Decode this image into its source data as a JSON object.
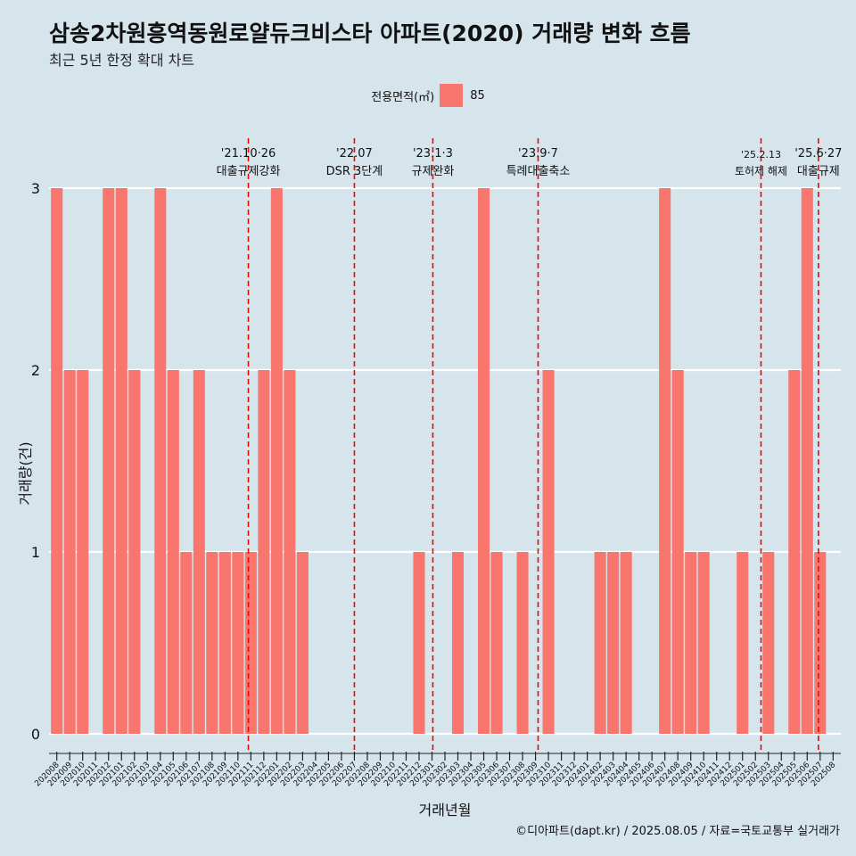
{
  "header": {
    "title": "삼송2차원흥역동원로얄듀크비스타 아파트(2020) 거래량 변화 흐름",
    "subtitle": "최근 5년 한정 확대 차트"
  },
  "legend": {
    "title": "전용면적(㎡)",
    "entries": [
      {
        "label": "85",
        "color": "#f8766d"
      }
    ]
  },
  "caption": "©디아파트(dapt.kr) / 2025.08.05 / 자료=국토교통부 실거래가",
  "colors": {
    "background": "#d6e4ec",
    "bar": "#f8766d",
    "gridline": "#ffffff",
    "event_line": "#ff0000"
  },
  "chart_data": {
    "type": "bar",
    "xlabel": "거래년월",
    "ylabel": "거래량(건)",
    "ylim": [
      0,
      3
    ],
    "yticks": [
      0,
      1,
      2,
      3
    ],
    "categories": [
      "202008",
      "202009",
      "202010",
      "202011",
      "202012",
      "202101",
      "202102",
      "202103",
      "202104",
      "202105",
      "202106",
      "202107",
      "202108",
      "202109",
      "202110",
      "202111",
      "202112",
      "202201",
      "202202",
      "202203",
      "202204",
      "202205",
      "202206",
      "202207",
      "202208",
      "202209",
      "202210",
      "202211",
      "202212",
      "202301",
      "202302",
      "202303",
      "202304",
      "202305",
      "202306",
      "202307",
      "202308",
      "202309",
      "202310",
      "202311",
      "202312",
      "202401",
      "202402",
      "202403",
      "202404",
      "202405",
      "202406",
      "202407",
      "202408",
      "202409",
      "202410",
      "202411",
      "202412",
      "202501",
      "202502",
      "202503",
      "202504",
      "202505",
      "202506",
      "202507",
      "202508"
    ],
    "series": [
      {
        "name": "85",
        "values": [
          3,
          2,
          2,
          0,
          3,
          3,
          2,
          0,
          3,
          2,
          1,
          2,
          1,
          1,
          1,
          1,
          2,
          3,
          2,
          1,
          0,
          0,
          0,
          0,
          0,
          0,
          0,
          0,
          1,
          0,
          0,
          1,
          0,
          3,
          1,
          0,
          1,
          0,
          2,
          0,
          0,
          0,
          1,
          1,
          1,
          0,
          0,
          3,
          2,
          1,
          1,
          0,
          0,
          1,
          0,
          1,
          0,
          2,
          3,
          1,
          0
        ]
      }
    ],
    "events": [
      {
        "date": "2021-10-26",
        "label_date": "'21.10·26",
        "label": "대출규제강화"
      },
      {
        "date": "2022-07-01",
        "label_date": "'22.07",
        "label": "DSR 3단계"
      },
      {
        "date": "2023-01-03",
        "label_date": "'23.1·3",
        "label": "규제완화"
      },
      {
        "date": "2023-09-07",
        "label_date": "'23.9·7",
        "label": "특례대출축소"
      },
      {
        "date": "2025-02-13",
        "label_date": "'25.2.13",
        "label": "토허제 해제"
      },
      {
        "date": "2025-06-27",
        "label_date": "'25.6·27",
        "label": "대출규제"
      }
    ]
  }
}
